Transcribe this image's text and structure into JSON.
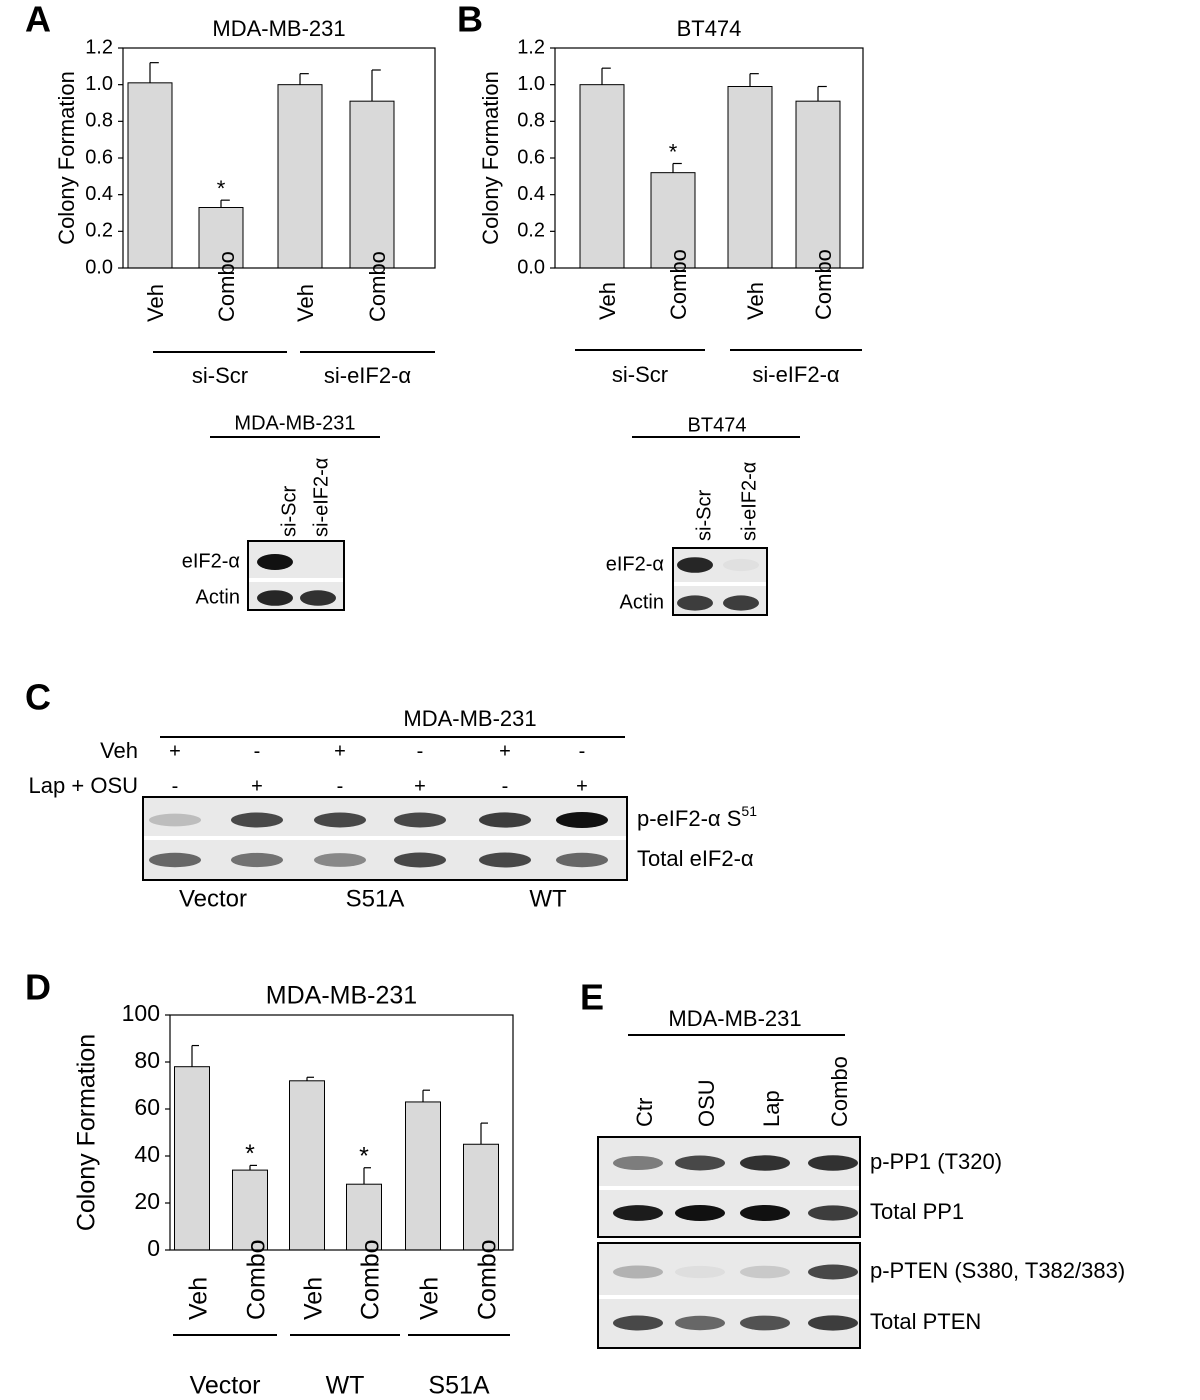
{
  "panel_labels": [
    "A",
    "B",
    "C",
    "D",
    "E"
  ],
  "chart_data": [
    {
      "type": "bar",
      "title": "MDA-MB-231",
      "y_label": "Colony Formation",
      "categories": [
        "Veh",
        "Combo",
        "Veh",
        "Combo"
      ],
      "series": [
        {
          "color": "#d9d9d9",
          "values": [
            1.01,
            0.33,
            1.0,
            0.91
          ],
          "errors": [
            0.11,
            0.04,
            0.06,
            0.17
          ]
        }
      ],
      "markers": [
        null,
        "*",
        null,
        null
      ],
      "groups": [
        "si-Scr",
        "si-eIF2-α"
      ],
      "ylim": [
        0,
        1.2
      ],
      "yticks": [
        {
          "value": 0,
          "label": "0.0"
        },
        0.2,
        0.4,
        0.6,
        0.8,
        {
          "value": 1,
          "label": "1.0"
        },
        1.2
      ]
    },
    {
      "type": "bar",
      "title": "BT474",
      "y_label": "Colony Formation",
      "categories": [
        "Veh",
        "Combo",
        "Veh",
        "Combo"
      ],
      "series": [
        {
          "color": "#d9d9d9",
          "values": [
            1.0,
            0.52,
            0.99,
            0.91
          ],
          "errors": [
            0.09,
            0.05,
            0.07,
            0.08
          ]
        }
      ],
      "markers": [
        null,
        "*",
        null,
        null
      ],
      "groups": [
        "si-Scr",
        "si-eIF2-α"
      ],
      "ylim": [
        0,
        1.2
      ],
      "yticks": [
        {
          "value": 0,
          "label": "0.0"
        },
        0.2,
        0.4,
        0.6,
        0.8,
        {
          "value": 1,
          "label": "1.0"
        },
        1.2
      ]
    },
    {
      "type": "bar",
      "title": "MDA-MB-231",
      "y_label": "Colony Formation",
      "categories": [
        "Veh",
        "Combo",
        "Veh",
        "Combo",
        "Veh",
        "Combo"
      ],
      "series": [
        {
          "color": "#d9d9d9",
          "values": [
            78,
            34,
            72,
            28,
            63,
            45
          ],
          "errors": [
            9,
            2,
            1.5,
            7,
            5,
            9
          ]
        }
      ],
      "markers": [
        null,
        "*",
        null,
        "*",
        null,
        null
      ],
      "groups": [
        "Vector",
        "WT",
        "S51A"
      ],
      "ylim": [
        0,
        100
      ],
      "yticks": [
        0,
        20,
        40,
        60,
        80,
        100
      ]
    }
  ],
  "blots": [
    {
      "header": "MDA-MB-231",
      "lanes": [
        "si-Scr",
        "si-eIF2-α"
      ],
      "rows": [
        "eIF2-α",
        "Actin"
      ]
    },
    {
      "header": "BT474",
      "lanes": [
        "si-Scr",
        "si-eIF2-α"
      ],
      "rows": [
        "eIF2-α",
        "Actin"
      ]
    },
    {
      "header": "MDA-MB-231",
      "lanes": [
        "Ctr",
        "OSU",
        "Lap",
        "Combo"
      ],
      "rows": [
        "p-PP1 (T320)",
        "Total PP1",
        "p-PTEN (S380, T382/383)",
        "Total PTEN"
      ]
    }
  ],
  "panel_c": {
    "header": "MDA-MB-231",
    "treatments": [
      {
        "label": "Veh",
        "signs": [
          "+",
          "-",
          "+",
          "-",
          "+",
          "-"
        ]
      },
      {
        "label": "Lap + OSU",
        "signs": [
          "-",
          "+",
          "-",
          "+",
          "-",
          "+"
        ]
      }
    ],
    "rows": [
      {
        "label": "p-eIF2-α S",
        "superscript": "51"
      },
      {
        "label": "Total eIF2-α"
      }
    ],
    "groups": [
      "Vector",
      "S51A",
      "WT"
    ]
  }
}
